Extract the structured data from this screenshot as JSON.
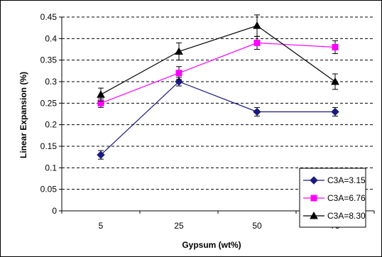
{
  "chart_data": {
    "type": "line",
    "title": "",
    "xlabel": "Gypsum (wt%)",
    "ylabel": "Linear Expansion (%)",
    "categories": [
      "5",
      "25",
      "50",
      "75"
    ],
    "ylim": [
      0,
      0.45
    ],
    "yticks": [
      "0",
      "0.05",
      "0.1",
      "0.15",
      "0.2",
      "0.25",
      "0.3",
      "0.35",
      "0.4",
      "0.45"
    ],
    "grid": "horizontal dashed",
    "legend_position": "bottom-right",
    "series": [
      {
        "name": "C3A=3.15",
        "color": "#1a1a7e",
        "marker": "diamond",
        "values": [
          0.13,
          0.3,
          0.23,
          0.23
        ],
        "errors": [
          0.01,
          0.01,
          0.01,
          0.01
        ]
      },
      {
        "name": "C3A=6.76",
        "color": "#ff00ff",
        "marker": "square",
        "values": [
          0.25,
          0.32,
          0.39,
          0.38
        ],
        "errors": [
          0.01,
          0.015,
          0.015,
          0.015
        ]
      },
      {
        "name": "C3A=8.30",
        "color": "#000000",
        "marker": "triangle",
        "values": [
          0.27,
          0.37,
          0.43,
          0.3
        ],
        "errors": [
          0.015,
          0.02,
          0.025,
          0.018
        ]
      }
    ]
  }
}
